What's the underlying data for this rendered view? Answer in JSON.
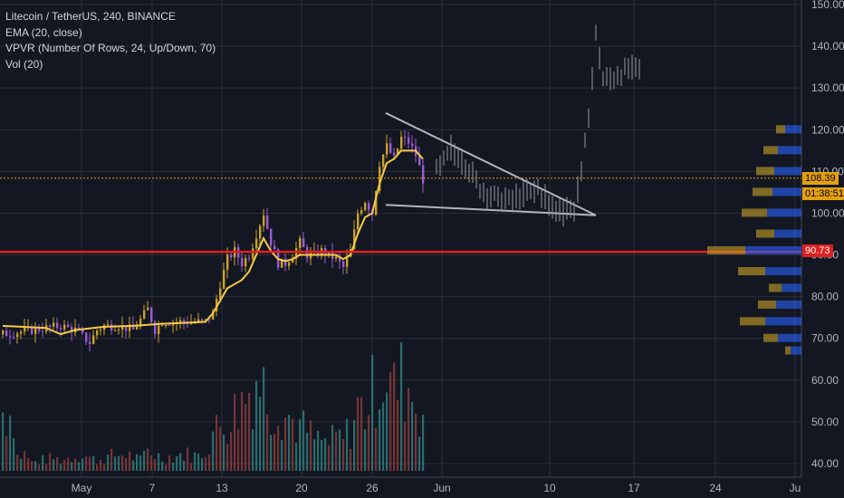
{
  "legend": {
    "title": "Litecoin / TetherUS, 240, BINANCE",
    "ema": "EMA (20, close)",
    "vpvr": "VPVR (Number Of Rows, 24, Up/Down, 70)",
    "vol": "Vol (20)"
  },
  "colors": {
    "background": "#131722",
    "grid": "#2a2e39",
    "candle_up": "#c9a227",
    "candle_down": "#9c5bd6",
    "ema": "#f7c948",
    "vol_up": "#2e7d7a",
    "vol_down": "#8a3a3a",
    "support_line": "#e02020",
    "last_price_line": "#e5a00d",
    "triangle": "#b2b5be",
    "projection": "#9598a1",
    "vpvr_up": "#2962ff",
    "vpvr_down": "#c9a227"
  },
  "price_tags": {
    "last_price": "108.39",
    "countdown": "01:38:51",
    "support": "90.73"
  },
  "chart_data": {
    "type": "candlestick",
    "y_axis": {
      "ticks": [
        "40.00",
        "50.00",
        "60.00",
        "70.00",
        "80.00",
        "90.00",
        "100.00",
        "110.00",
        "120.00",
        "130.00",
        "140.00",
        "150.00"
      ],
      "ylim": [
        39,
        150
      ]
    },
    "x_axis": {
      "ticks": [
        "May",
        "7",
        "13",
        "20",
        "26",
        "Jun",
        "10",
        "17",
        "24",
        "Ju"
      ]
    },
    "close_path": [
      [
        0,
        71
      ],
      [
        4,
        72
      ],
      [
        8,
        73
      ],
      [
        10,
        72
      ],
      [
        12,
        69
      ],
      [
        13,
        72
      ],
      [
        14,
        73
      ],
      [
        16,
        73
      ],
      [
        18,
        72
      ],
      [
        20,
        77
      ],
      [
        21,
        72
      ],
      [
        22,
        74
      ],
      [
        24,
        74
      ],
      [
        26,
        74
      ],
      [
        28,
        74
      ],
      [
        29,
        76
      ],
      [
        30,
        83
      ],
      [
        31,
        89
      ],
      [
        32,
        91
      ],
      [
        33,
        88
      ],
      [
        34,
        90
      ],
      [
        35,
        95
      ],
      [
        36,
        100
      ],
      [
        37,
        93
      ],
      [
        38,
        88
      ],
      [
        39,
        88
      ],
      [
        40,
        90
      ],
      [
        41,
        93
      ],
      [
        42,
        90
      ],
      [
        43,
        90
      ],
      [
        44,
        91
      ],
      [
        45,
        90
      ],
      [
        46,
        89
      ],
      [
        47,
        87
      ],
      [
        48,
        91
      ],
      [
        49,
        100
      ],
      [
        50,
        103
      ],
      [
        51,
        100
      ],
      [
        52,
        112
      ],
      [
        53,
        116
      ],
      [
        54,
        113
      ],
      [
        55,
        118
      ],
      [
        56,
        117
      ],
      [
        57,
        114
      ],
      [
        58,
        108
      ]
    ],
    "ema_path": [
      [
        0,
        73
      ],
      [
        6,
        72.5
      ],
      [
        8,
        71
      ],
      [
        10,
        72
      ],
      [
        14,
        72.8
      ],
      [
        18,
        73
      ],
      [
        22,
        73.5
      ],
      [
        26,
        73.8
      ],
      [
        28,
        74
      ],
      [
        29,
        76
      ],
      [
        30,
        79
      ],
      [
        31,
        82
      ],
      [
        32,
        83
      ],
      [
        33,
        84
      ],
      [
        34,
        86
      ],
      [
        35,
        90
      ],
      [
        36,
        94
      ],
      [
        37,
        91
      ],
      [
        38,
        89
      ],
      [
        39,
        88.5
      ],
      [
        40,
        89
      ],
      [
        41,
        90
      ],
      [
        42,
        90
      ],
      [
        44,
        90
      ],
      [
        46,
        90
      ],
      [
        47,
        89
      ],
      [
        48,
        90
      ],
      [
        49,
        95
      ],
      [
        50,
        99
      ],
      [
        51,
        100
      ],
      [
        52,
        107
      ],
      [
        53,
        112
      ],
      [
        54,
        113
      ],
      [
        55,
        115
      ],
      [
        56,
        115
      ],
      [
        57,
        115
      ],
      [
        58,
        113
      ]
    ],
    "volume": [
      [
        2,
        7
      ],
      [
        3,
        8
      ],
      [
        4,
        4
      ],
      [
        7,
        6
      ],
      [
        8,
        5
      ],
      [
        11,
        8
      ],
      [
        12,
        6
      ],
      [
        13,
        5
      ],
      [
        15,
        7
      ],
      [
        17,
        8
      ],
      [
        19,
        5
      ],
      [
        20,
        10
      ],
      [
        22,
        6
      ],
      [
        25,
        8
      ],
      [
        27,
        7
      ],
      [
        28,
        10
      ],
      [
        29,
        18
      ],
      [
        30,
        21
      ],
      [
        31,
        24
      ],
      [
        32,
        28
      ],
      [
        33,
        33
      ],
      [
        34,
        38
      ],
      [
        35,
        45
      ],
      [
        36,
        40
      ],
      [
        37,
        31
      ],
      [
        38,
        32
      ],
      [
        39,
        27
      ],
      [
        40,
        24
      ],
      [
        41,
        21
      ],
      [
        42,
        19
      ],
      [
        43,
        15
      ],
      [
        44,
        14
      ],
      [
        45,
        13
      ],
      [
        46,
        16
      ],
      [
        47,
        15
      ],
      [
        48,
        20
      ],
      [
        49,
        30
      ],
      [
        50,
        29
      ],
      [
        51,
        37
      ],
      [
        52,
        44
      ],
      [
        53,
        47
      ],
      [
        54,
        38
      ],
      [
        55,
        43
      ],
      [
        56,
        40
      ],
      [
        57,
        33
      ],
      [
        58,
        28
      ]
    ],
    "triangle": {
      "upper": [
        [
          53,
          124
        ],
        [
          82,
          99.5
        ]
      ],
      "lower": [
        [
          53,
          102
        ],
        [
          82,
          99.5
        ]
      ]
    },
    "projection": [
      [
        60,
        110
      ],
      [
        62,
        115
      ],
      [
        64,
        112
      ],
      [
        66,
        106
      ],
      [
        68,
        104
      ],
      [
        70,
        103
      ],
      [
        72,
        104
      ],
      [
        74,
        106
      ],
      [
        76,
        101
      ],
      [
        78,
        101
      ],
      [
        79,
        101
      ],
      [
        80,
        110
      ],
      [
        81,
        123
      ],
      [
        82,
        143
      ],
      [
        83,
        132
      ],
      [
        84,
        132
      ],
      [
        86,
        134
      ],
      [
        88,
        135
      ]
    ],
    "vpvr": [
      {
        "price": 120,
        "up": 18,
        "down": 10
      },
      {
        "price": 115,
        "up": 26,
        "down": 16
      },
      {
        "price": 110,
        "up": 30,
        "down": 20
      },
      {
        "price": 105,
        "up": 32,
        "down": 22
      },
      {
        "price": 100,
        "up": 38,
        "down": 28
      },
      {
        "price": 95,
        "up": 30,
        "down": 20
      },
      {
        "price": 91,
        "up": 62,
        "down": 42
      },
      {
        "price": 86,
        "up": 40,
        "down": 30
      },
      {
        "price": 82,
        "up": 22,
        "down": 14
      },
      {
        "price": 78,
        "up": 28,
        "down": 20
      },
      {
        "price": 74,
        "up": 40,
        "down": 28
      },
      {
        "price": 70,
        "up": 26,
        "down": 16
      },
      {
        "price": 67,
        "up": 12,
        "down": 6
      }
    ],
    "support_price": 90.73,
    "last_price": 108.39
  }
}
